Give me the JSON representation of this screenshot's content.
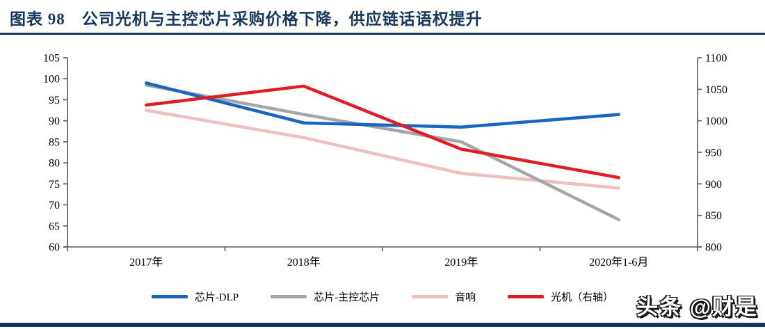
{
  "title": "图表 98　公司光机与主控芯片采购价格下降，供应链话语权提升",
  "watermark": "头条 @财是",
  "colors": {
    "navy": "#17375e",
    "axis": "#595959",
    "series_blue": "#1667c0",
    "series_gray": "#a6a6a6",
    "series_pink": "#f0bec1",
    "series_red": "#e11d23"
  },
  "chart_data": {
    "type": "line",
    "title": "公司光机与主控芯片采购价格下降，供应链话语权提升",
    "categories": [
      "2017年",
      "2018年",
      "2019年",
      "2020年1-6月"
    ],
    "series": [
      {
        "name": "芯片-DLP",
        "axis": "left",
        "color": "#1667c0",
        "values": [
          99,
          89.5,
          88.5,
          91.5
        ]
      },
      {
        "name": "芯片-主控芯片",
        "axis": "left",
        "color": "#a6a6a6",
        "values": [
          98.5,
          91.5,
          85,
          66.5
        ]
      },
      {
        "name": "音响",
        "axis": "left",
        "color": "#f0bec1",
        "values": [
          92.5,
          86,
          77.5,
          74
        ]
      },
      {
        "name": "光机（右轴）",
        "axis": "right",
        "color": "#e11d23",
        "values": [
          1025,
          1055,
          955,
          910
        ]
      }
    ],
    "left_axis": {
      "min": 60,
      "max": 105,
      "step": 5,
      "ticks": [
        60,
        65,
        70,
        75,
        80,
        85,
        90,
        95,
        100,
        105
      ]
    },
    "right_axis": {
      "min": 800,
      "max": 1100,
      "step": 50,
      "ticks": [
        800,
        850,
        900,
        950,
        1000,
        1050,
        1100
      ]
    },
    "legend_position": "bottom",
    "grid": false
  }
}
